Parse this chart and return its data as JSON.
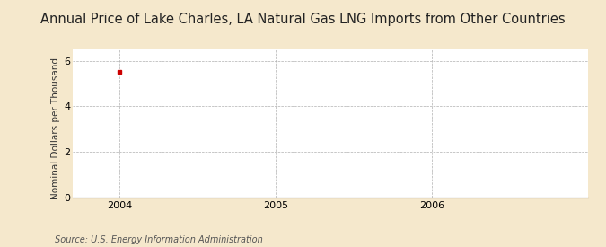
{
  "title": "Annual Price of Lake Charles, LA Natural Gas LNG Imports from Other Countries",
  "ylabel": "Nominal Dollars per Thousand...",
  "source_text": "Source: U.S. Energy Information Administration",
  "background_color": "#f5e8cc",
  "plot_background_color": "#ffffff",
  "data_x": [
    2004
  ],
  "data_y": [
    5.5
  ],
  "data_color": "#cc0000",
  "xmin": 2003.7,
  "xmax": 2007.0,
  "ymin": 0,
  "ymax": 6.5,
  "yticks": [
    0,
    2,
    4,
    6
  ],
  "xticks": [
    2004,
    2005,
    2006
  ],
  "grid_color": "#b0b0b0",
  "title_fontsize": 10.5,
  "label_fontsize": 7.5,
  "tick_fontsize": 8,
  "source_fontsize": 7
}
